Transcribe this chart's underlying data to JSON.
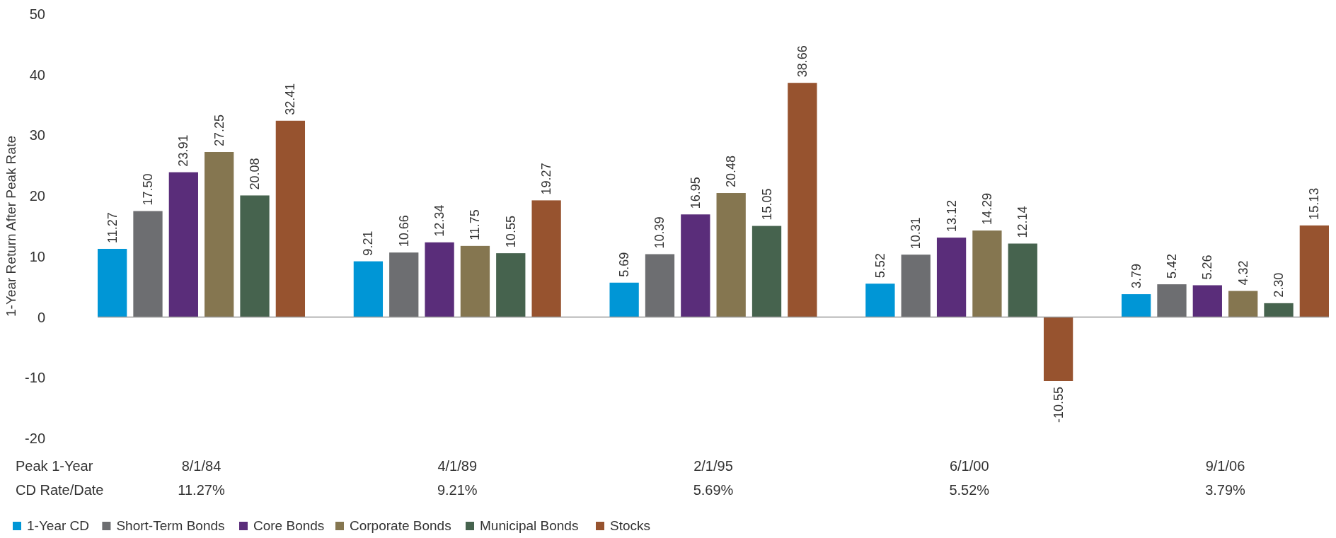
{
  "chart_data": {
    "type": "bar",
    "ylabel": "1-Year Return After Peak Rate",
    "xlabel": "Peak 1-Year\nCD Rate/Date",
    "categories": [
      "8/1/84\n11.27%",
      "4/1/89\n9.21%",
      "2/1/95\n5.69%",
      "6/1/00\n5.52%",
      "9/1/06\n3.79%"
    ],
    "series": [
      {
        "name": "1-Year CD",
        "color": "#0096d6",
        "values": [
          11.27,
          9.21,
          5.69,
          5.52,
          3.79
        ],
        "value_labels": [
          "11.27",
          "9.21",
          "5.69",
          "5.52",
          "3.79"
        ]
      },
      {
        "name": "Short-Term Bonds",
        "color": "#6d6e71",
        "values": [
          17.5,
          10.66,
          10.39,
          10.31,
          5.42
        ],
        "value_labels": [
          "17.50",
          "10.66",
          "10.39",
          "10.31",
          "5.42"
        ]
      },
      {
        "name": "Core Bonds",
        "color": "#5a2d7a",
        "values": [
          23.91,
          12.34,
          16.95,
          13.12,
          5.26
        ],
        "value_labels": [
          "23.91",
          "12.34",
          "16.95",
          "13.12",
          "5.26"
        ]
      },
      {
        "name": "Corporate Bonds",
        "color": "#857650",
        "values": [
          27.25,
          11.75,
          20.48,
          14.29,
          4.32
        ],
        "value_labels": [
          "27.25",
          "11.75",
          "20.48",
          "14.29",
          "4.32"
        ]
      },
      {
        "name": "Municipal Bonds",
        "color": "#46634e",
        "values": [
          20.08,
          10.55,
          15.05,
          12.14,
          2.3
        ],
        "value_labels": [
          "20.08",
          "10.55",
          "15.05",
          "12.14",
          "2.30"
        ]
      },
      {
        "name": "Stocks",
        "color": "#97532f",
        "values": [
          32.41,
          19.27,
          38.66,
          -10.55,
          15.13
        ],
        "value_labels": [
          "32.41",
          "19.27",
          "38.66",
          "-10.55",
          "15.13"
        ]
      }
    ],
    "ylim": [
      -20,
      50
    ],
    "yticks": [
      -20,
      -10,
      0,
      10,
      20,
      30,
      40,
      50
    ],
    "legend": "bottom left"
  }
}
